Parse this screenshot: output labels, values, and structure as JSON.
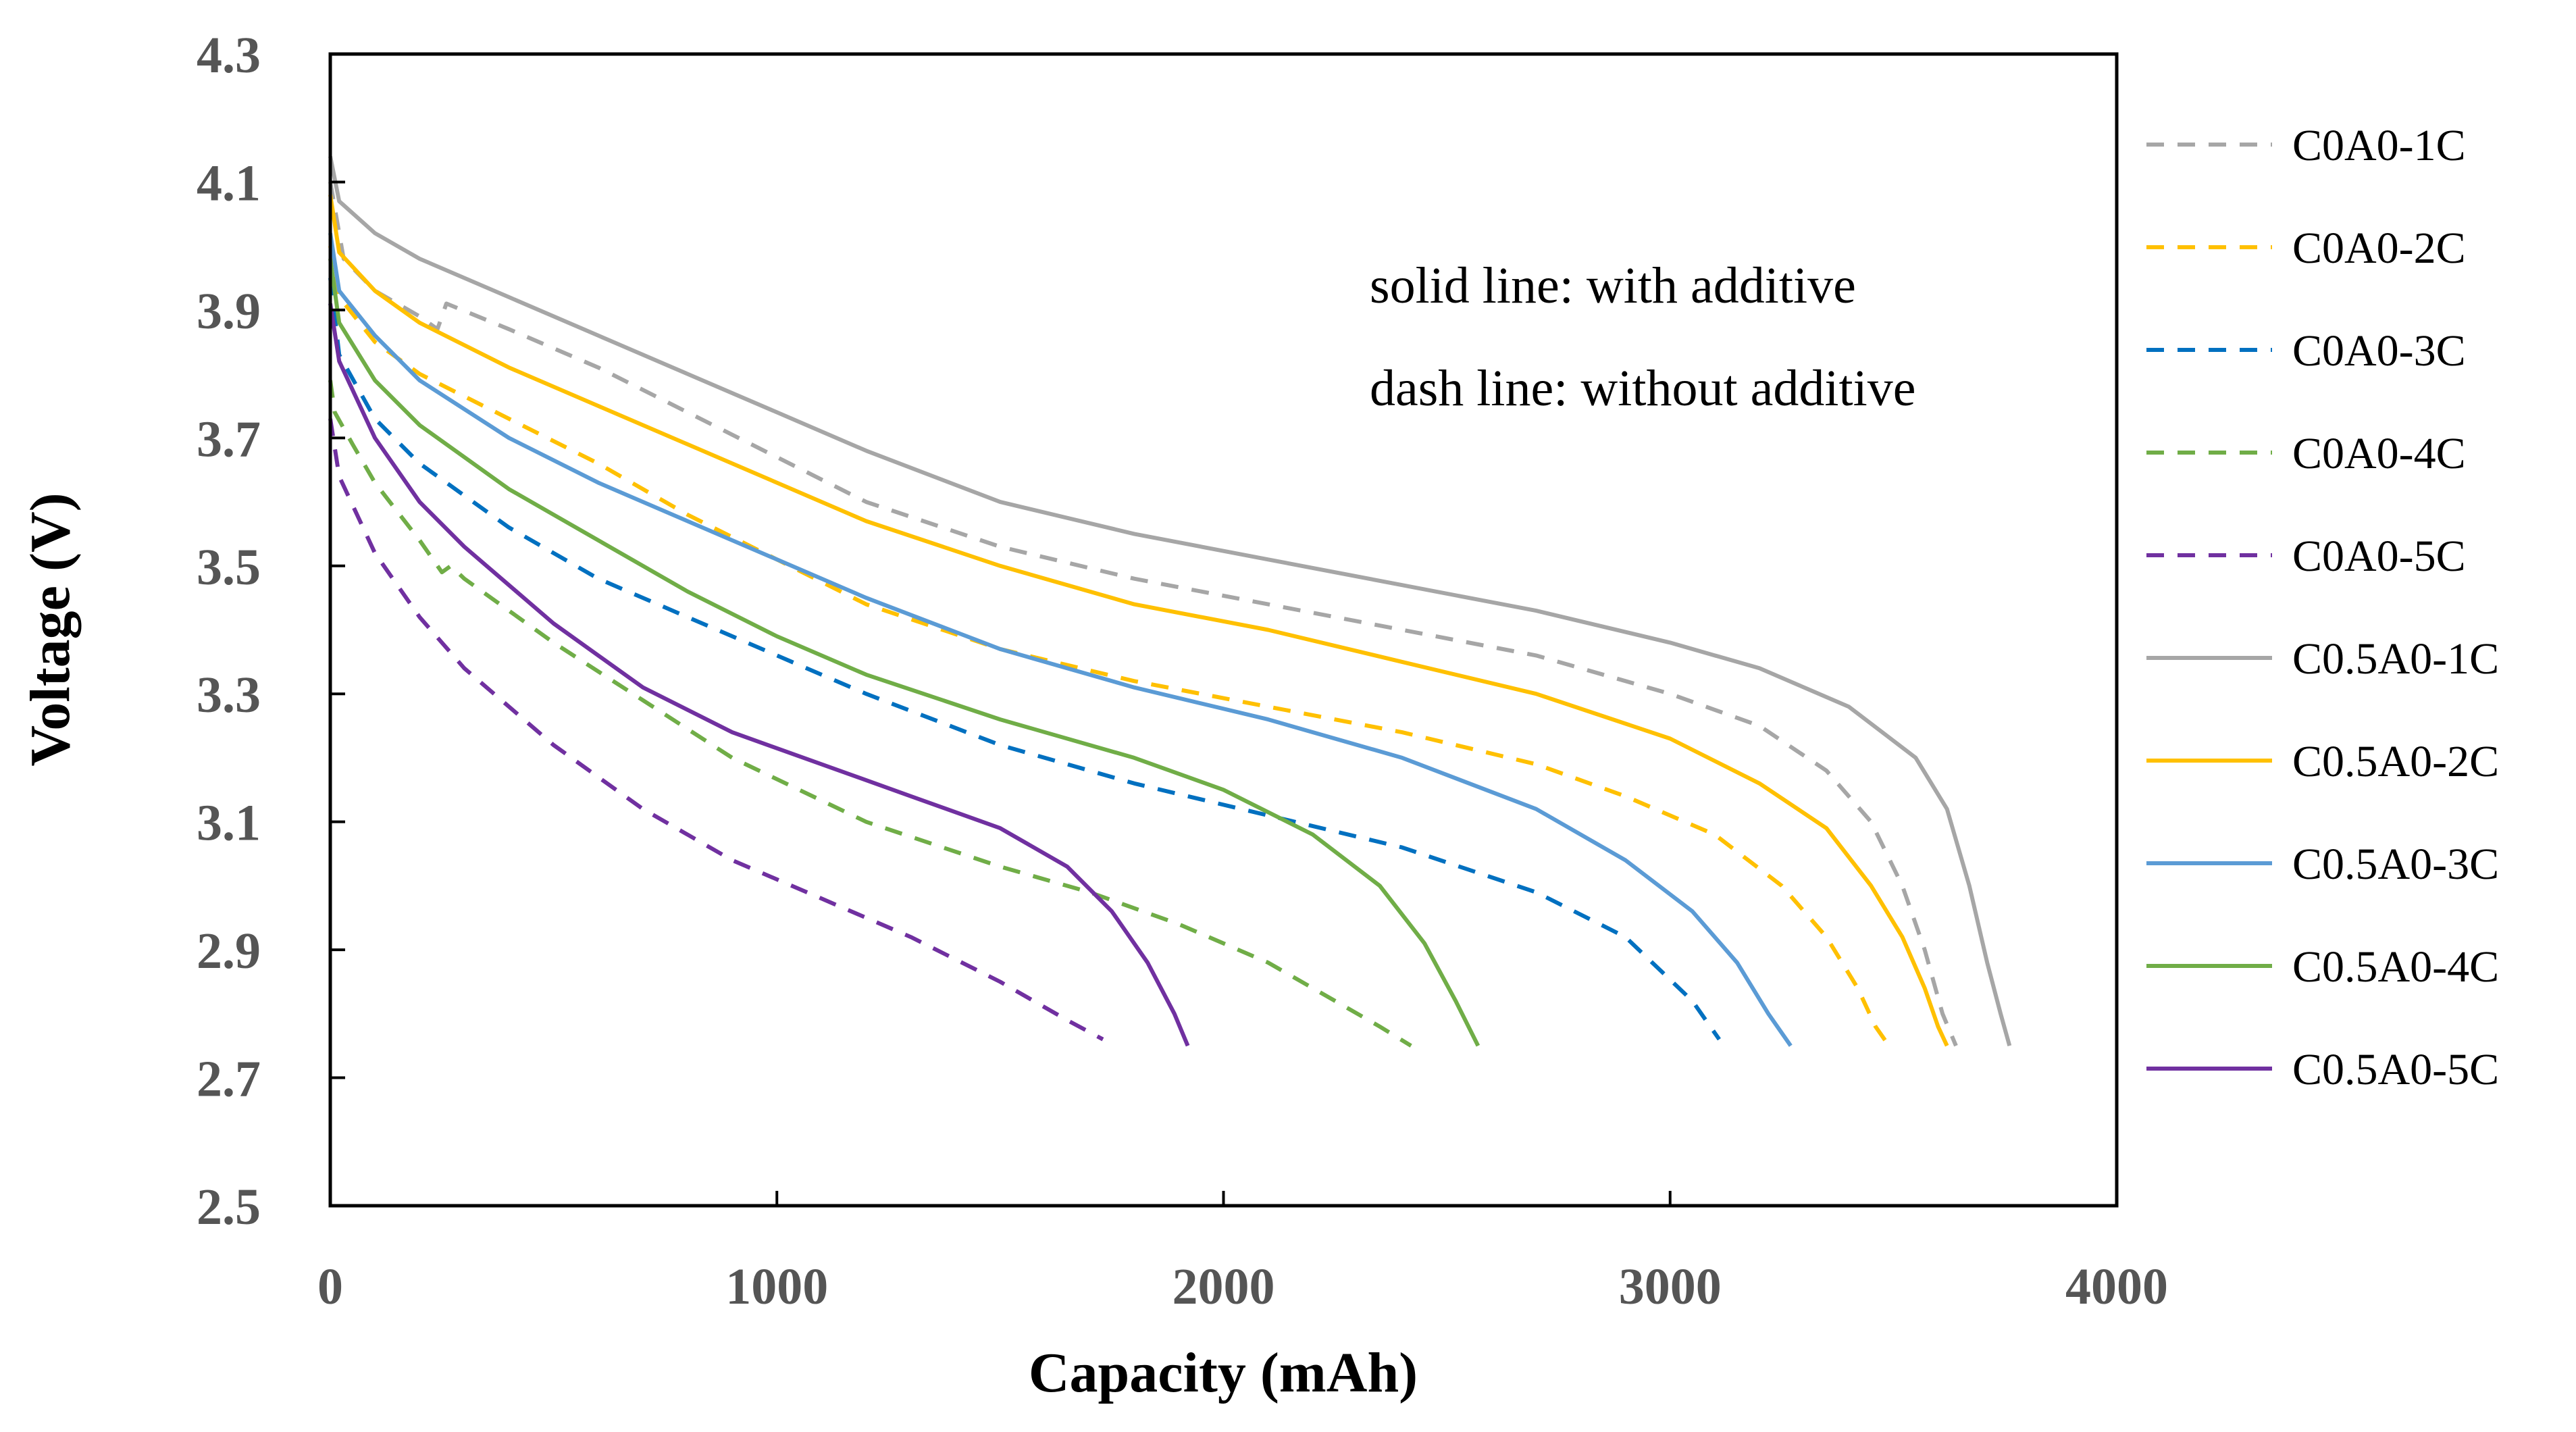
{
  "chart_data": {
    "type": "line",
    "title": "",
    "xlabel": "Capacity (mAh)",
    "ylabel": "Voltage (V)",
    "xlim": [
      0,
      4000
    ],
    "ylim": [
      2.5,
      4.3
    ],
    "xticks": [
      0,
      1000,
      2000,
      3000,
      4000
    ],
    "yticks": [
      2.5,
      2.7,
      2.9,
      3.1,
      3.3,
      3.5,
      3.7,
      3.9,
      4.1,
      4.3
    ],
    "grid": false,
    "legend_position": "right",
    "annotations": [
      "solid line: with additive",
      "dash line: without additive"
    ],
    "series": [
      {
        "name": "C0A0-1C",
        "color": "#A6A6A6",
        "dash": true,
        "x": [
          0,
          30,
          100,
          200,
          240,
          260,
          400,
          600,
          800,
          1000,
          1200,
          1500,
          1800,
          2100,
          2400,
          2700,
          3000,
          3200,
          3350,
          3450,
          3520,
          3570,
          3610,
          3640
        ],
        "y": [
          4.1,
          3.98,
          3.93,
          3.89,
          3.87,
          3.91,
          3.87,
          3.81,
          3.74,
          3.67,
          3.6,
          3.53,
          3.48,
          3.44,
          3.4,
          3.36,
          3.3,
          3.25,
          3.18,
          3.1,
          3.0,
          2.9,
          2.8,
          2.75
        ]
      },
      {
        "name": "C0A0-2C",
        "color": "#FFC000",
        "dash": true,
        "x": [
          0,
          20,
          100,
          200,
          400,
          600,
          800,
          1000,
          1200,
          1500,
          1800,
          2100,
          2400,
          2700,
          2900,
          3100,
          3250,
          3350,
          3420,
          3460,
          3490
        ],
        "y": [
          4.0,
          3.92,
          3.85,
          3.8,
          3.73,
          3.66,
          3.58,
          3.51,
          3.44,
          3.37,
          3.32,
          3.28,
          3.24,
          3.19,
          3.14,
          3.08,
          3.0,
          2.92,
          2.84,
          2.78,
          2.75
        ]
      },
      {
        "name": "C0A0-3C",
        "color": "#0070C0",
        "dash": true,
        "x": [
          0,
          20,
          100,
          200,
          400,
          600,
          800,
          1000,
          1200,
          1500,
          1800,
          2100,
          2400,
          2700,
          2900,
          3050,
          3110
        ],
        "y": [
          3.95,
          3.83,
          3.73,
          3.66,
          3.56,
          3.48,
          3.42,
          3.36,
          3.3,
          3.22,
          3.16,
          3.11,
          3.06,
          2.99,
          2.92,
          2.82,
          2.76
        ]
      },
      {
        "name": "C0A0-4C",
        "color": "#70AD47",
        "dash": true,
        "x": [
          0,
          10,
          50,
          100,
          200,
          250,
          270,
          300,
          500,
          700,
          900,
          1200,
          1500,
          1700,
          1900,
          2100,
          2250,
          2350,
          2420
        ],
        "y": [
          3.79,
          3.74,
          3.69,
          3.63,
          3.54,
          3.49,
          3.5,
          3.48,
          3.38,
          3.29,
          3.2,
          3.1,
          3.03,
          2.99,
          2.94,
          2.88,
          2.82,
          2.78,
          2.75
        ]
      },
      {
        "name": "C0A0-5C",
        "color": "#7030A0",
        "dash": true,
        "x": [
          0,
          20,
          100,
          200,
          300,
          500,
          700,
          900,
          1100,
          1300,
          1500,
          1650,
          1730
        ],
        "y": [
          3.73,
          3.64,
          3.52,
          3.42,
          3.34,
          3.22,
          3.12,
          3.04,
          2.98,
          2.92,
          2.85,
          2.79,
          2.76
        ]
      },
      {
        "name": "C0.5A0-1C",
        "color": "#A6A6A6",
        "dash": false,
        "x": [
          0,
          20,
          100,
          200,
          400,
          600,
          800,
          1000,
          1200,
          1500,
          1800,
          2100,
          2400,
          2700,
          3000,
          3200,
          3400,
          3550,
          3620,
          3670,
          3710,
          3740,
          3760
        ],
        "y": [
          4.14,
          4.07,
          4.02,
          3.98,
          3.92,
          3.86,
          3.8,
          3.74,
          3.68,
          3.6,
          3.55,
          3.51,
          3.47,
          3.43,
          3.38,
          3.34,
          3.28,
          3.2,
          3.12,
          3.0,
          2.88,
          2.8,
          2.75
        ]
      },
      {
        "name": "C0.5A0-2C",
        "color": "#FFC000",
        "dash": false,
        "x": [
          0,
          20,
          100,
          200,
          400,
          600,
          800,
          1000,
          1200,
          1500,
          1800,
          2100,
          2400,
          2700,
          3000,
          3200,
          3350,
          3450,
          3520,
          3570,
          3600,
          3620
        ],
        "y": [
          4.08,
          3.99,
          3.93,
          3.88,
          3.81,
          3.75,
          3.69,
          3.63,
          3.57,
          3.5,
          3.44,
          3.4,
          3.35,
          3.3,
          3.23,
          3.16,
          3.09,
          3.0,
          2.92,
          2.84,
          2.78,
          2.75
        ]
      },
      {
        "name": "C0.5A0-3C",
        "color": "#5B9BD5",
        "dash": false,
        "x": [
          0,
          20,
          100,
          200,
          400,
          600,
          800,
          1000,
          1200,
          1500,
          1800,
          2100,
          2400,
          2700,
          2900,
          3050,
          3150,
          3220,
          3270
        ],
        "y": [
          4.02,
          3.93,
          3.86,
          3.79,
          3.7,
          3.63,
          3.57,
          3.51,
          3.45,
          3.37,
          3.31,
          3.26,
          3.2,
          3.12,
          3.04,
          2.96,
          2.88,
          2.8,
          2.75
        ]
      },
      {
        "name": "C0.5A0-4C",
        "color": "#70AD47",
        "dash": false,
        "x": [
          0,
          20,
          100,
          200,
          400,
          600,
          800,
          1000,
          1200,
          1500,
          1800,
          2000,
          2200,
          2350,
          2450,
          2520,
          2570
        ],
        "y": [
          3.98,
          3.88,
          3.79,
          3.72,
          3.62,
          3.54,
          3.46,
          3.39,
          3.33,
          3.26,
          3.2,
          3.15,
          3.08,
          3.0,
          2.91,
          2.82,
          2.75
        ]
      },
      {
        "name": "C0.5A0-5C",
        "color": "#7030A0",
        "dash": false,
        "x": [
          0,
          20,
          100,
          200,
          300,
          500,
          700,
          900,
          1100,
          1300,
          1500,
          1650,
          1750,
          1830,
          1890,
          1920
        ],
        "y": [
          3.91,
          3.82,
          3.7,
          3.6,
          3.53,
          3.41,
          3.31,
          3.24,
          3.19,
          3.14,
          3.09,
          3.03,
          2.96,
          2.88,
          2.8,
          2.75
        ]
      }
    ]
  }
}
